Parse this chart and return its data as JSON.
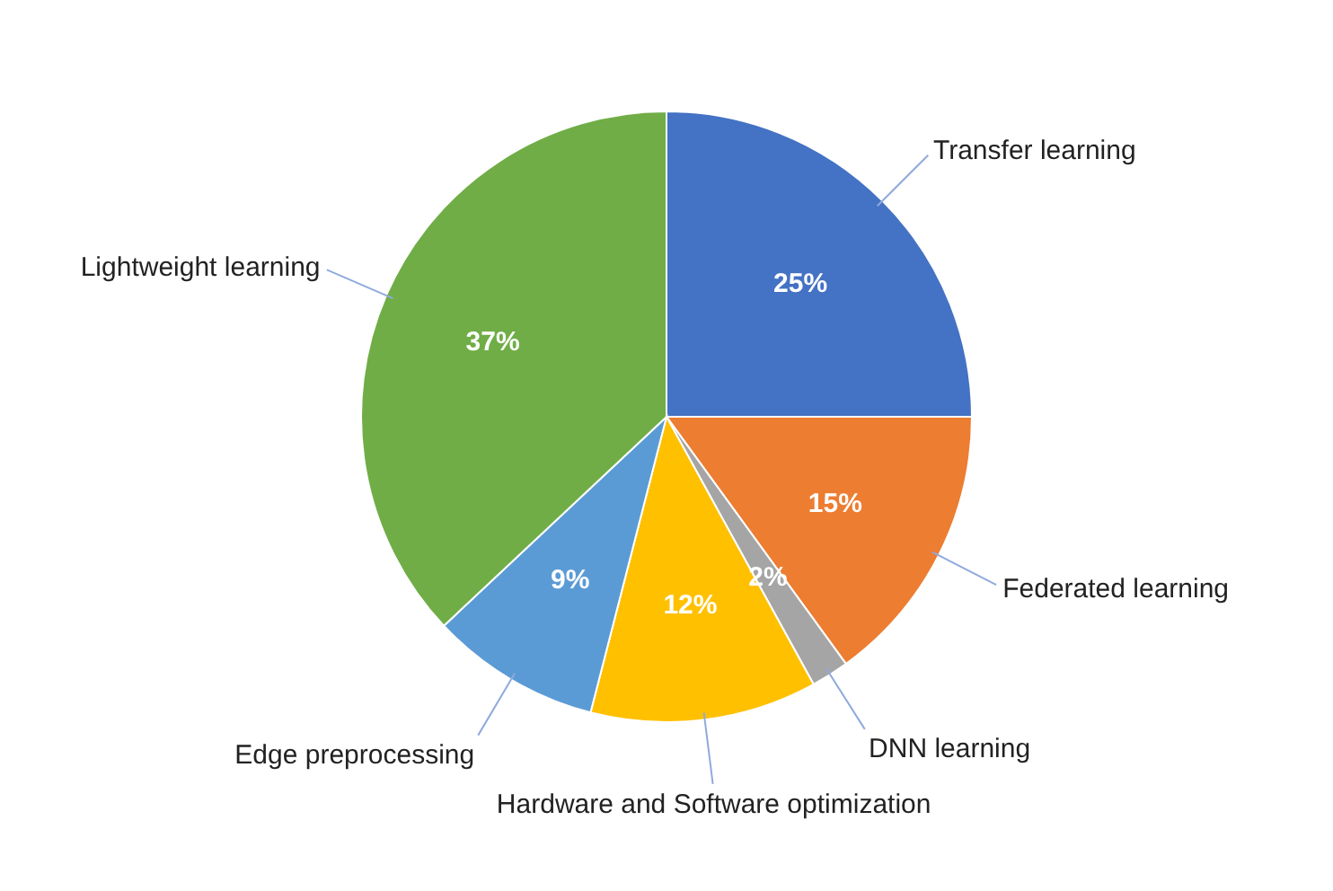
{
  "chart_data": {
    "type": "pie",
    "categories": [
      "Transfer learning",
      "Federated learning",
      "DNN learning",
      "Hardware and Software optimization",
      "Edge preprocessing",
      "Lightweight learning"
    ],
    "values": [
      25,
      15,
      2,
      12,
      9,
      37
    ],
    "colors": [
      "#4472c4",
      "#ed7d31",
      "#a5a5a5",
      "#ffc000",
      "#5b9bd5",
      "#70ad47"
    ],
    "value_labels": [
      "25%",
      "15%",
      "2%",
      "12%",
      "9%",
      "37%"
    ]
  }
}
